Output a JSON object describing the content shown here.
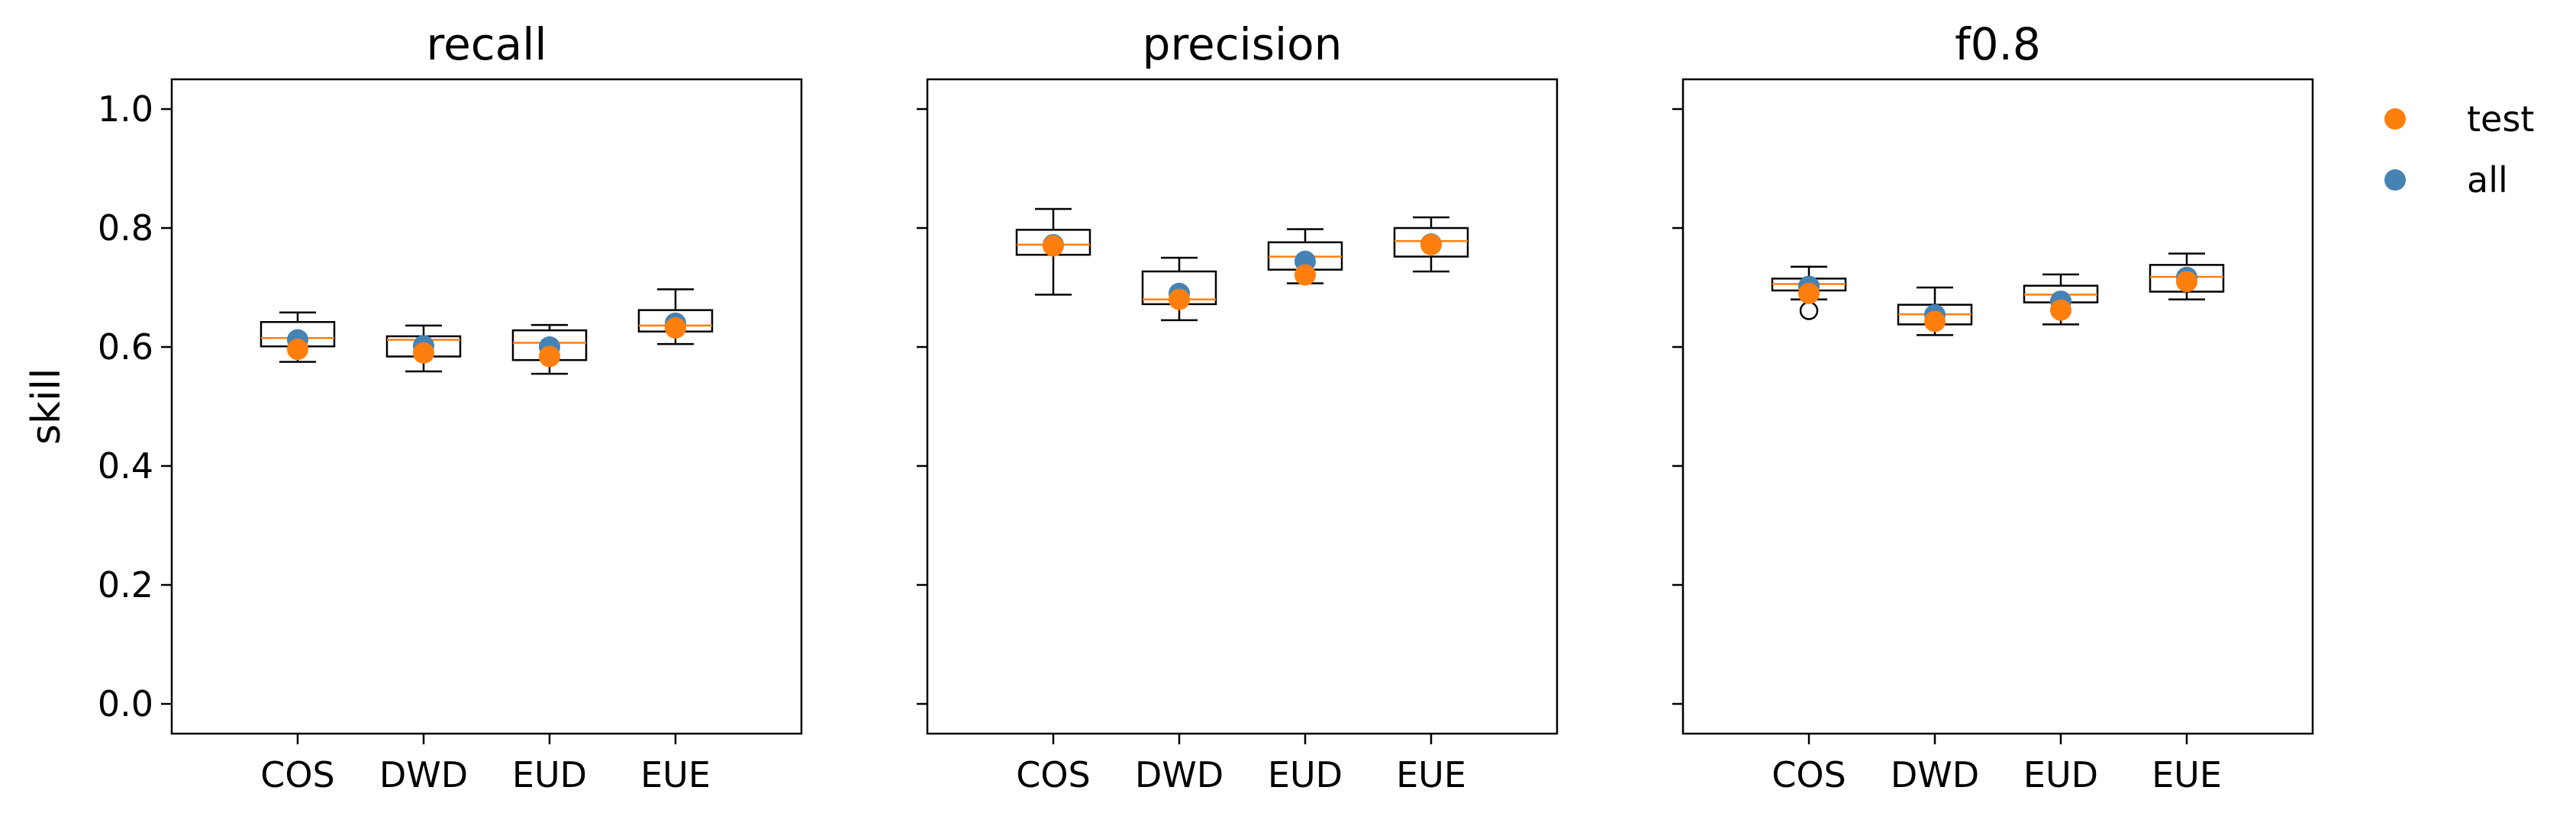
{
  "chart_data": [
    {
      "type": "box",
      "title": "recall",
      "ylabel": "skill",
      "categories": [
        "COS",
        "DWD",
        "EUD",
        "EUE"
      ],
      "ylim": [
        -0.05,
        1.05
      ],
      "yticks": [
        "0.0",
        "0.2",
        "0.4",
        "0.6",
        "0.8",
        "1.0"
      ],
      "boxes": [
        {
          "whislo": 0.575,
          "q1": 0.601,
          "med": 0.615,
          "q3": 0.642,
          "whishi": 0.658,
          "fliers": []
        },
        {
          "whislo": 0.559,
          "q1": 0.584,
          "med": 0.612,
          "q3": 0.618,
          "whishi": 0.636,
          "fliers": []
        },
        {
          "whislo": 0.555,
          "q1": 0.578,
          "med": 0.607,
          "q3": 0.628,
          "whishi": 0.637,
          "fliers": []
        },
        {
          "whislo": 0.605,
          "q1": 0.626,
          "med": 0.636,
          "q3": 0.662,
          "whishi": 0.697,
          "fliers": []
        }
      ],
      "series": [
        {
          "name": "all",
          "values": [
            0.612,
            0.602,
            0.6,
            0.64
          ]
        },
        {
          "name": "test",
          "values": [
            0.596,
            0.59,
            0.584,
            0.632
          ]
        }
      ]
    },
    {
      "type": "box",
      "title": "precision",
      "categories": [
        "COS",
        "DWD",
        "EUD",
        "EUE"
      ],
      "ylim": [
        -0.05,
        1.05
      ],
      "boxes": [
        {
          "whislo": 0.688,
          "q1": 0.755,
          "med": 0.772,
          "q3": 0.797,
          "whishi": 0.832,
          "fliers": []
        },
        {
          "whislo": 0.645,
          "q1": 0.672,
          "med": 0.68,
          "q3": 0.727,
          "whishi": 0.75,
          "fliers": []
        },
        {
          "whislo": 0.707,
          "q1": 0.73,
          "med": 0.752,
          "q3": 0.776,
          "whishi": 0.798,
          "fliers": []
        },
        {
          "whislo": 0.727,
          "q1": 0.752,
          "med": 0.778,
          "q3": 0.8,
          "whishi": 0.818,
          "fliers": []
        }
      ],
      "series": [
        {
          "name": "all",
          "values": [
            0.772,
            0.69,
            0.744,
            0.773
          ]
        },
        {
          "name": "test",
          "values": [
            0.77,
            0.68,
            0.721,
            0.772
          ]
        }
      ]
    },
    {
      "type": "box",
      "title": "f0.8",
      "categories": [
        "COS",
        "DWD",
        "EUD",
        "EUE"
      ],
      "ylim": [
        -0.05,
        1.05
      ],
      "boxes": [
        {
          "whislo": 0.68,
          "q1": 0.695,
          "med": 0.706,
          "q3": 0.715,
          "whishi": 0.735,
          "fliers": [
            0.661
          ]
        },
        {
          "whislo": 0.62,
          "q1": 0.638,
          "med": 0.655,
          "q3": 0.671,
          "whishi": 0.7,
          "fliers": []
        },
        {
          "whislo": 0.638,
          "q1": 0.675,
          "med": 0.688,
          "q3": 0.703,
          "whishi": 0.722,
          "fliers": []
        },
        {
          "whislo": 0.68,
          "q1": 0.693,
          "med": 0.718,
          "q3": 0.738,
          "whishi": 0.757,
          "fliers": []
        }
      ],
      "series": [
        {
          "name": "all",
          "values": [
            0.702,
            0.654,
            0.677,
            0.717
          ]
        },
        {
          "name": "test",
          "values": [
            0.69,
            0.643,
            0.662,
            0.71
          ]
        }
      ]
    }
  ],
  "legend": {
    "placement": "outside-right-top",
    "items": [
      {
        "name": "test",
        "color": "#ff7f0e"
      },
      {
        "name": "all",
        "color": "#4682b4"
      }
    ]
  },
  "colors": {
    "box": "#000000",
    "median": "#ff7f0e",
    "all": "#4682b4",
    "test": "#ff7f0e"
  }
}
